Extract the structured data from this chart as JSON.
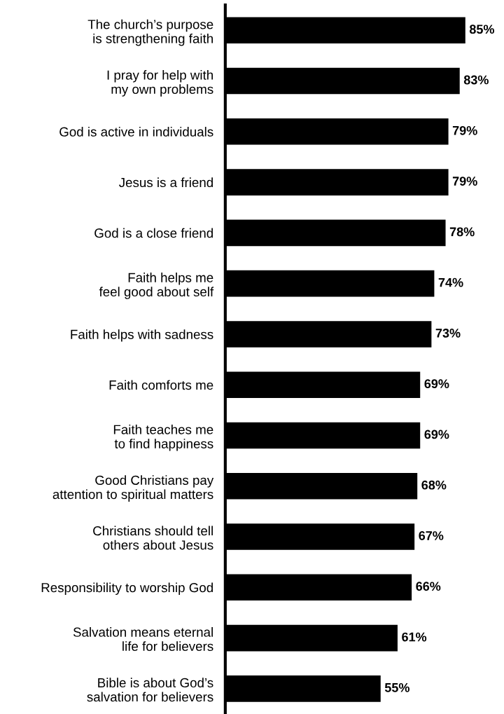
{
  "chart_data": {
    "type": "bar",
    "orientation": "horizontal",
    "categories": [
      "The church’s purpose\nis strengthening faith",
      "I pray for help with\nmy own problems",
      "God is active in individuals",
      "Jesus is a friend",
      "God is a close friend",
      "Faith helps me\nfeel good about self",
      "Faith helps with sadness",
      "Faith comforts me",
      "Faith teaches me\nto find happiness",
      "Good Christians pay\nattention to spiritual matters",
      "Christians should tell\nothers about Jesus",
      "Responsibility to worship God",
      "Salvation means eternal\nlife for believers",
      "Bible is about God’s\nsalvation for believers"
    ],
    "values": [
      85,
      83,
      79,
      79,
      78,
      74,
      73,
      69,
      69,
      68,
      67,
      66,
      61,
      55
    ],
    "value_labels": [
      "85%",
      "83%",
      "79%",
      "79%",
      "78%",
      "74%",
      "73%",
      "69%",
      "69%",
      "68%",
      "67%",
      "66%",
      "61%",
      "55%"
    ],
    "color": "#000000",
    "tick_labels": "y",
    "grid": false,
    "legend": false
  }
}
